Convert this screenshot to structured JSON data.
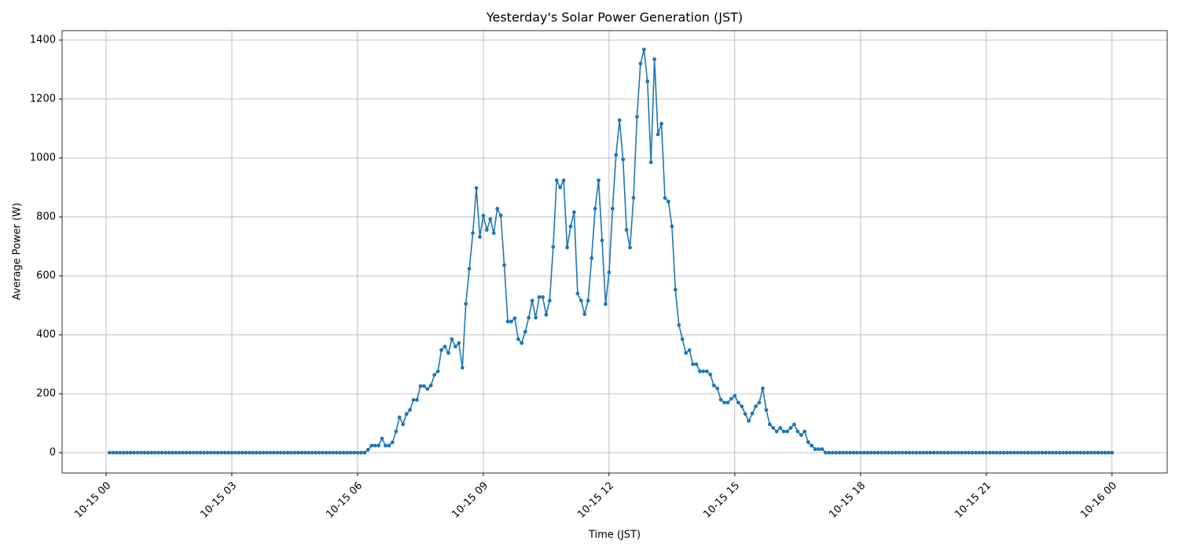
{
  "chart_data": {
    "type": "line",
    "title": "Yesterday's Solar Power Generation (JST)",
    "xlabel": "Time (JST)",
    "ylabel": "Average Power (W)",
    "color": "#1f77b4",
    "grid": true,
    "x": [
      5,
      10,
      15,
      20,
      25,
      30,
      35,
      40,
      45,
      50,
      55,
      60,
      65,
      70,
      75,
      80,
      85,
      90,
      95,
      100,
      105,
      110,
      115,
      120,
      125,
      130,
      135,
      140,
      145,
      150,
      155,
      160,
      165,
      170,
      175,
      180,
      185,
      190,
      195,
      200,
      205,
      210,
      215,
      220,
      225,
      230,
      235,
      240,
      245,
      250,
      255,
      260,
      265,
      270,
      275,
      280,
      285,
      290,
      295,
      300,
      305,
      310,
      315,
      320,
      325,
      330,
      335,
      340,
      345,
      350,
      355,
      360,
      365,
      370,
      375,
      380,
      385,
      390,
      395,
      400,
      405,
      410,
      415,
      420,
      425,
      430,
      435,
      440,
      445,
      450,
      455,
      460,
      465,
      470,
      475,
      480,
      485,
      490,
      495,
      500,
      505,
      510,
      515,
      520,
      525,
      530,
      535,
      540,
      545,
      550,
      555,
      560,
      565,
      570,
      575,
      580,
      585,
      590,
      595,
      600,
      605,
      610,
      615,
      620,
      625,
      630,
      635,
      640,
      645,
      650,
      655,
      660,
      665,
      670,
      675,
      680,
      685,
      690,
      695,
      700,
      705,
      710,
      715,
      720,
      725,
      730,
      735,
      740,
      745,
      750,
      755,
      760,
      765,
      770,
      775,
      780,
      785,
      790,
      795,
      800,
      805,
      810,
      815,
      820,
      825,
      830,
      835,
      840,
      845,
      850,
      855,
      860,
      865,
      870,
      875,
      880,
      885,
      890,
      895,
      900,
      905,
      910,
      915,
      920,
      925,
      930,
      935,
      940,
      945,
      950,
      955,
      960,
      965,
      970,
      975,
      980,
      985,
      990,
      995,
      1000,
      1005,
      1010,
      1015,
      1020,
      1025,
      1030,
      1035,
      1040,
      1045,
      1050,
      1055,
      1060,
      1065,
      1070,
      1075,
      1080,
      1085,
      1090,
      1095,
      1100,
      1105,
      1110,
      1115,
      1120,
      1125,
      1130,
      1135,
      1140,
      1145,
      1150,
      1155,
      1160,
      1165,
      1170,
      1175,
      1180,
      1185,
      1190,
      1195,
      1200,
      1205,
      1210,
      1215,
      1220,
      1225,
      1230,
      1235,
      1240,
      1245,
      1250,
      1255,
      1260,
      1265,
      1270,
      1275,
      1280,
      1285,
      1290,
      1295,
      1300,
      1305,
      1310,
      1315,
      1320,
      1325,
      1330,
      1335,
      1340,
      1345,
      1350,
      1355,
      1360,
      1365,
      1370,
      1375,
      1380,
      1385,
      1390,
      1395,
      1400,
      1405,
      1410,
      1415,
      1420,
      1425,
      1430,
      1435,
      1440
    ],
    "values": [
      0,
      0,
      0,
      0,
      0,
      0,
      0,
      0,
      0,
      0,
      0,
      0,
      0,
      0,
      0,
      0,
      0,
      0,
      0,
      0,
      0,
      0,
      0,
      0,
      0,
      0,
      0,
      0,
      0,
      0,
      0,
      0,
      0,
      0,
      0,
      0,
      0,
      0,
      0,
      0,
      0,
      0,
      0,
      0,
      0,
      0,
      0,
      0,
      0,
      0,
      0,
      0,
      0,
      0,
      0,
      0,
      0,
      0,
      0,
      0,
      0,
      0,
      0,
      0,
      0,
      0,
      0,
      0,
      0,
      0,
      0,
      0,
      0,
      0,
      10,
      24,
      24,
      24,
      48,
      24,
      24,
      35,
      72,
      120,
      96,
      131,
      145,
      179,
      179,
      226,
      226,
      216,
      228,
      264,
      276,
      348,
      360,
      338,
      385,
      360,
      372,
      288,
      505,
      624,
      745,
      898,
      732,
      804,
      756,
      792,
      745,
      828,
      805,
      636,
      445,
      445,
      456,
      385,
      372,
      410,
      458,
      516,
      458,
      528,
      528,
      468,
      516,
      698,
      924,
      900,
      924,
      696,
      768,
      816,
      540,
      516,
      470,
      516,
      660,
      828,
      924,
      720,
      504,
      612,
      828,
      1010,
      1128,
      995,
      756,
      696,
      865,
      1140,
      1320,
      1368,
      1260,
      985,
      1335,
      1080,
      1116,
      864,
      852,
      768,
      553,
      433,
      385,
      338,
      348,
      300,
      300,
      276,
      276,
      276,
      265,
      228,
      218,
      180,
      170,
      170,
      183,
      193,
      170,
      157,
      131,
      108,
      133,
      157,
      170,
      218,
      145,
      96,
      84,
      72,
      84,
      72,
      72,
      84,
      96,
      72,
      60,
      72,
      36,
      24,
      12,
      12,
      12,
      0,
      0,
      0,
      0,
      0,
      0,
      0,
      0,
      0,
      0,
      0,
      0,
      0,
      0,
      0,
      0,
      0,
      0,
      0,
      0,
      0,
      0,
      0,
      0,
      0,
      0,
      0,
      0,
      0,
      0,
      0,
      0,
      0,
      0,
      0,
      0,
      0,
      0,
      0,
      0,
      0,
      0,
      0,
      0,
      0,
      0,
      0,
      0,
      0,
      0,
      0,
      0,
      0,
      0,
      0,
      0,
      0,
      0,
      0,
      0,
      0,
      0,
      0,
      0,
      0,
      0,
      0,
      0,
      0,
      0,
      0,
      0,
      0,
      0,
      0,
      0,
      0,
      0,
      0,
      0,
      0,
      0,
      0
    ],
    "xlim": [
      -63,
      1519
    ],
    "ylim": [
      -69,
      1432
    ],
    "xticks": [
      {
        "value": 0,
        "label": "10-15 00"
      },
      {
        "value": 180,
        "label": "10-15 03"
      },
      {
        "value": 360,
        "label": "10-15 06"
      },
      {
        "value": 540,
        "label": "10-15 09"
      },
      {
        "value": 720,
        "label": "10-15 12"
      },
      {
        "value": 900,
        "label": "10-15 15"
      },
      {
        "value": 1080,
        "label": "10-15 18"
      },
      {
        "value": 1260,
        "label": "10-15 21"
      },
      {
        "value": 1440,
        "label": "10-16 00"
      }
    ],
    "yticks": [
      0,
      200,
      400,
      600,
      800,
      1000,
      1200,
      1400
    ]
  }
}
